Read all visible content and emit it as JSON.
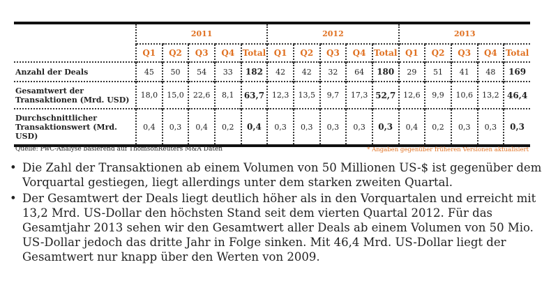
{
  "table": {
    "years": [
      "2011",
      "2012",
      "2013"
    ],
    "quarters": [
      "Q1",
      "Q2",
      "Q3",
      "Q4",
      "Total"
    ],
    "rows": [
      {
        "label": "Anzahl der Deals",
        "values": [
          "45",
          "50",
          "54",
          "33",
          "182",
          "42",
          "42",
          "32",
          "64",
          "180",
          "29",
          "51",
          "41",
          "48",
          "169"
        ]
      },
      {
        "label": "Gesamtwert der Transaktionen (Mrd. USD)",
        "values": [
          "18,0",
          "15,0",
          "22,6",
          "8,1",
          "63,7",
          "12,3",
          "13,5",
          "9,7",
          "17,3",
          "52,7",
          "12,6",
          "9,9",
          "10,6",
          "13,2",
          "46,4"
        ]
      },
      {
        "label": "Durchschnittlicher Transaktionswert (Mrd. USD)",
        "values": [
          "0,4",
          "0,3",
          "0,4",
          "0,2",
          "0,4",
          "0,3",
          "0,3",
          "0,3",
          "0,3",
          "0,3",
          "0,4",
          "0,2",
          "0,3",
          "0,3",
          "0,3"
        ]
      }
    ]
  },
  "source": "Quelle: PwC-Analyse basierend auf  ThomsonReuters M&A Daten",
  "note": "* Angaben gegenüber früheren Versionen aktualisiert",
  "bullets": [
    "Die Zahl der Transaktionen ab einem Volumen von 50 Millionen US-$ ist gegenüber dem Vorquartal gestiegen, liegt allerdings unter dem starken zweiten Quartal.",
    "Der Gesamtwert der Deals liegt deutlich höher als in den Vorquartalen und erreicht mit 13,2 Mrd. US-Dollar den höchsten Stand seit dem vierten Quartal 2012. Für das Gesamtjahr 2013 sehen wir den Gesamtwert aller Deals ab einem Volumen von 50 Mio. US-Dollar jedoch das dritte Jahr in Folge sinken. Mit 46,4 Mrd. US-Dollar liegt der Gesamtwert nur knapp über den Werten von 2009."
  ]
}
